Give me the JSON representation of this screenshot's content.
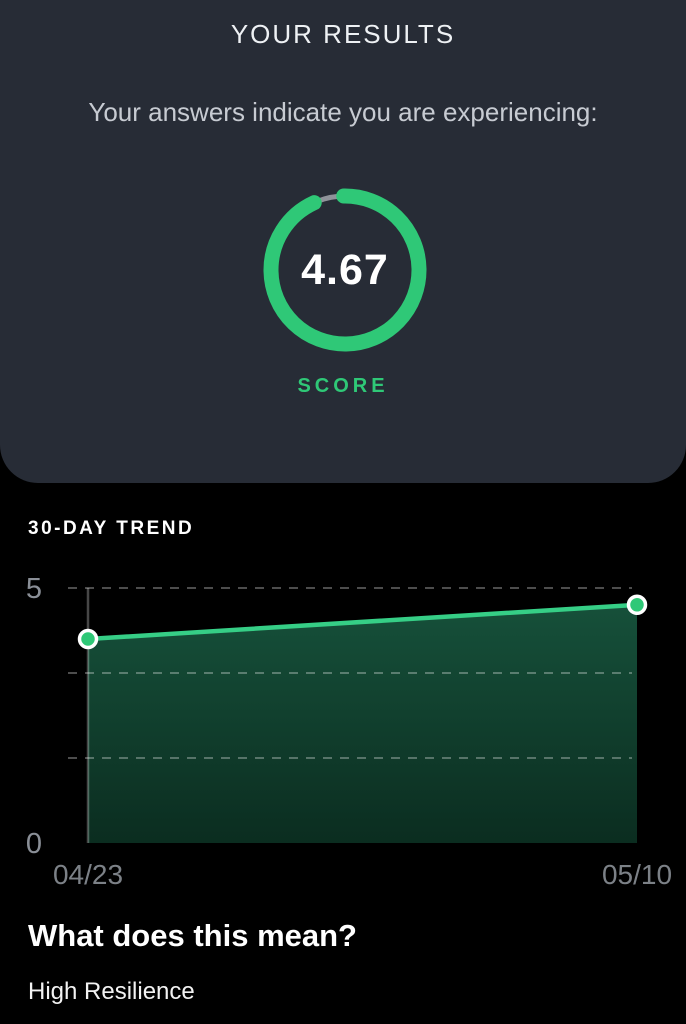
{
  "results_card": {
    "title": "YOUR RESULTS",
    "subtitle": "Your answers indicate you are experiencing:",
    "score_value": "4.67",
    "score_label": "SCORE"
  },
  "chart_data": {
    "type": "area",
    "title": "30-DAY TREND",
    "x": [
      "04/23",
      "05/10"
    ],
    "values": [
      4.0,
      4.67
    ],
    "ylim": [
      0,
      5
    ],
    "ytick_labels": [
      {
        "value": 5,
        "label": "5"
      },
      {
        "value": 0,
        "label": "0"
      }
    ],
    "gridlines_y": [
      5,
      3.3333,
      1.6667
    ],
    "grid_style": "dashed",
    "cursor_index": 0,
    "line_color": "#36ce86",
    "marker_fill": "#2fc877",
    "marker_stroke": "#ffffff",
    "area_top_color": "#16503a",
    "area_bottom_color": "#0b2d20",
    "grid_color": "rgba(255,255,255,0.30)",
    "cursor_color": "rgba(255,255,255,0.28)",
    "axis_label_color": "#8a8f97",
    "date_label_color": "#7c8187"
  },
  "meaning": {
    "heading": "What does this mean?",
    "body": "High Resilience"
  },
  "colors": {
    "accent_green": "#2fc877",
    "card_background": "#272c36",
    "page_background": "#000000",
    "gauge_track_gray": "#8f939a"
  }
}
